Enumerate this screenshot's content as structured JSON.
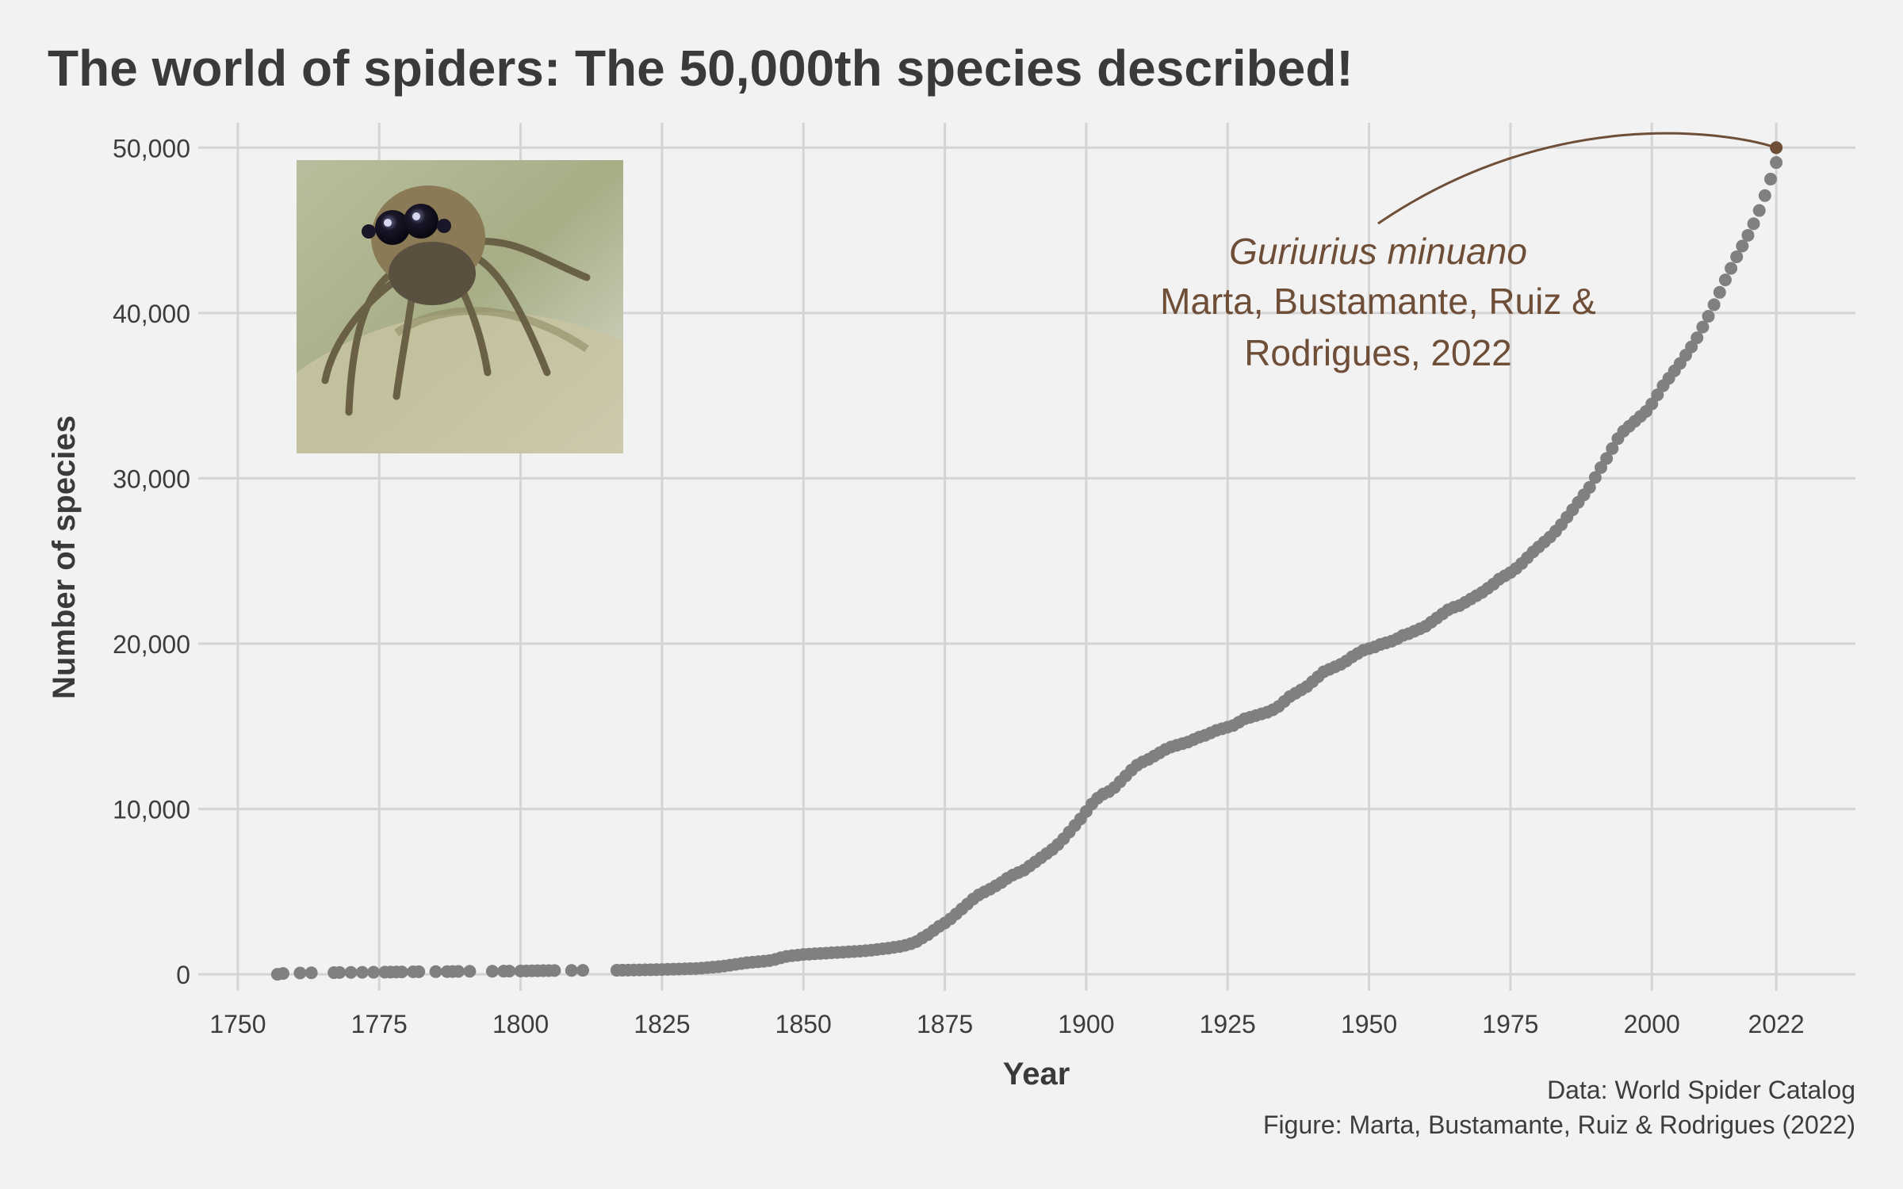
{
  "colors": {
    "background": "#f2f2f2",
    "grid": "#d4d4d4",
    "points": "#808080",
    "highlight": "#6f4e37",
    "text": "#3a3a3a"
  },
  "chart_data": {
    "type": "scatter",
    "title": "The world of spiders: The 50,000th species described!",
    "xlabel": "Year",
    "ylabel": "Number of species",
    "xlim": [
      1743,
      2036
    ],
    "ylim": [
      -1000,
      51500
    ],
    "x_ticks": [
      1750,
      1775,
      1800,
      1825,
      1850,
      1875,
      1900,
      1925,
      1950,
      1975,
      2000,
      2022
    ],
    "x_tick_labels": [
      "1750",
      "1775",
      "1800",
      "1825",
      "1850",
      "1875",
      "1900",
      "1925",
      "1950",
      "1975",
      "2000",
      "2022"
    ],
    "y_ticks": [
      0,
      10000,
      20000,
      30000,
      40000,
      50000
    ],
    "y_tick_labels": [
      "0",
      "10,000",
      "20,000",
      "30,000",
      "40,000",
      "50,000"
    ],
    "grid": true,
    "legend": "none",
    "series": [
      {
        "values_xy": [
          [
            1757,
            0
          ],
          [
            1758,
            50
          ],
          [
            1761,
            80
          ],
          [
            1763,
            90
          ],
          [
            1767,
            100
          ],
          [
            1768,
            110
          ],
          [
            1770,
            115
          ],
          [
            1772,
            120
          ],
          [
            1774,
            125
          ],
          [
            1776,
            130
          ],
          [
            1777,
            135
          ],
          [
            1778,
            140
          ],
          [
            1779,
            145
          ],
          [
            1781,
            150
          ],
          [
            1782,
            155
          ],
          [
            1785,
            160
          ],
          [
            1787,
            165
          ],
          [
            1788,
            170
          ],
          [
            1789,
            175
          ],
          [
            1791,
            180
          ],
          [
            1795,
            185
          ],
          [
            1797,
            190
          ],
          [
            1798,
            195
          ],
          [
            1800,
            200
          ],
          [
            1801,
            205
          ],
          [
            1802,
            210
          ],
          [
            1803,
            215
          ],
          [
            1804,
            220
          ],
          [
            1805,
            225
          ],
          [
            1806,
            230
          ],
          [
            1809,
            235
          ],
          [
            1811,
            240
          ],
          [
            1817,
            245
          ],
          [
            1818,
            250
          ],
          [
            1819,
            255
          ],
          [
            1820,
            260
          ],
          [
            1821,
            265
          ],
          [
            1822,
            270
          ],
          [
            1823,
            275
          ],
          [
            1824,
            280
          ],
          [
            1825,
            290
          ],
          [
            1826,
            300
          ],
          [
            1827,
            310
          ],
          [
            1828,
            320
          ],
          [
            1829,
            330
          ],
          [
            1830,
            340
          ],
          [
            1831,
            350
          ],
          [
            1832,
            370
          ],
          [
            1833,
            400
          ],
          [
            1834,
            430
          ],
          [
            1835,
            460
          ],
          [
            1836,
            500
          ],
          [
            1837,
            550
          ],
          [
            1838,
            600
          ],
          [
            1839,
            650
          ],
          [
            1840,
            700
          ],
          [
            1841,
            730
          ],
          [
            1842,
            760
          ],
          [
            1843,
            790
          ],
          [
            1844,
            830
          ],
          [
            1845,
            900
          ],
          [
            1846,
            1000
          ],
          [
            1847,
            1080
          ],
          [
            1848,
            1130
          ],
          [
            1849,
            1160
          ],
          [
            1850,
            1200
          ],
          [
            1851,
            1220
          ],
          [
            1852,
            1240
          ],
          [
            1853,
            1260
          ],
          [
            1854,
            1280
          ],
          [
            1855,
            1300
          ],
          [
            1856,
            1320
          ],
          [
            1857,
            1340
          ],
          [
            1858,
            1360
          ],
          [
            1859,
            1380
          ],
          [
            1860,
            1400
          ],
          [
            1861,
            1430
          ],
          [
            1862,
            1460
          ],
          [
            1863,
            1500
          ],
          [
            1864,
            1540
          ],
          [
            1865,
            1580
          ],
          [
            1866,
            1630
          ],
          [
            1867,
            1680
          ],
          [
            1868,
            1750
          ],
          [
            1869,
            1850
          ],
          [
            1870,
            1980
          ],
          [
            1871,
            2200
          ],
          [
            1872,
            2400
          ],
          [
            1873,
            2650
          ],
          [
            1874,
            2900
          ],
          [
            1875,
            3100
          ],
          [
            1876,
            3350
          ],
          [
            1877,
            3650
          ],
          [
            1878,
            3950
          ],
          [
            1879,
            4250
          ],
          [
            1880,
            4550
          ],
          [
            1881,
            4800
          ],
          [
            1882,
            4980
          ],
          [
            1883,
            5150
          ],
          [
            1884,
            5350
          ],
          [
            1885,
            5550
          ],
          [
            1886,
            5800
          ],
          [
            1887,
            6000
          ],
          [
            1888,
            6150
          ],
          [
            1889,
            6300
          ],
          [
            1890,
            6550
          ],
          [
            1891,
            6800
          ],
          [
            1892,
            7050
          ],
          [
            1893,
            7300
          ],
          [
            1894,
            7550
          ],
          [
            1895,
            7850
          ],
          [
            1896,
            8200
          ],
          [
            1897,
            8600
          ],
          [
            1898,
            9000
          ],
          [
            1899,
            9400
          ],
          [
            1900,
            9850
          ],
          [
            1901,
            10300
          ],
          [
            1902,
            10650
          ],
          [
            1903,
            10900
          ],
          [
            1904,
            11050
          ],
          [
            1905,
            11300
          ],
          [
            1906,
            11650
          ],
          [
            1907,
            12000
          ],
          [
            1908,
            12350
          ],
          [
            1909,
            12650
          ],
          [
            1910,
            12850
          ],
          [
            1911,
            13000
          ],
          [
            1912,
            13200
          ],
          [
            1913,
            13400
          ],
          [
            1914,
            13600
          ],
          [
            1915,
            13750
          ],
          [
            1916,
            13850
          ],
          [
            1917,
            13950
          ],
          [
            1918,
            14050
          ],
          [
            1919,
            14200
          ],
          [
            1920,
            14350
          ],
          [
            1921,
            14450
          ],
          [
            1922,
            14600
          ],
          [
            1923,
            14750
          ],
          [
            1924,
            14850
          ],
          [
            1925,
            14950
          ],
          [
            1926,
            15050
          ],
          [
            1927,
            15250
          ],
          [
            1928,
            15450
          ],
          [
            1929,
            15550
          ],
          [
            1930,
            15650
          ],
          [
            1931,
            15750
          ],
          [
            1932,
            15850
          ],
          [
            1933,
            16000
          ],
          [
            1934,
            16200
          ],
          [
            1935,
            16500
          ],
          [
            1936,
            16800
          ],
          [
            1937,
            17000
          ],
          [
            1938,
            17200
          ],
          [
            1939,
            17400
          ],
          [
            1940,
            17700
          ],
          [
            1941,
            18000
          ],
          [
            1942,
            18300
          ],
          [
            1943,
            18450
          ],
          [
            1944,
            18600
          ],
          [
            1945,
            18750
          ],
          [
            1946,
            18950
          ],
          [
            1947,
            19200
          ],
          [
            1948,
            19400
          ],
          [
            1949,
            19600
          ],
          [
            1950,
            19700
          ],
          [
            1951,
            19800
          ],
          [
            1952,
            19950
          ],
          [
            1953,
            20050
          ],
          [
            1954,
            20150
          ],
          [
            1955,
            20300
          ],
          [
            1956,
            20500
          ],
          [
            1957,
            20600
          ],
          [
            1958,
            20750
          ],
          [
            1959,
            20900
          ],
          [
            1960,
            21050
          ],
          [
            1961,
            21300
          ],
          [
            1962,
            21550
          ],
          [
            1963,
            21800
          ],
          [
            1964,
            22050
          ],
          [
            1965,
            22200
          ],
          [
            1966,
            22300
          ],
          [
            1967,
            22500
          ],
          [
            1968,
            22700
          ],
          [
            1969,
            22900
          ],
          [
            1970,
            23100
          ],
          [
            1971,
            23350
          ],
          [
            1972,
            23600
          ],
          [
            1973,
            23900
          ],
          [
            1974,
            24100
          ],
          [
            1975,
            24300
          ],
          [
            1976,
            24550
          ],
          [
            1977,
            24850
          ],
          [
            1978,
            25200
          ],
          [
            1979,
            25550
          ],
          [
            1980,
            25850
          ],
          [
            1981,
            26150
          ],
          [
            1982,
            26450
          ],
          [
            1983,
            26800
          ],
          [
            1984,
            27200
          ],
          [
            1985,
            27650
          ],
          [
            1986,
            28100
          ],
          [
            1987,
            28550
          ],
          [
            1988,
            29000
          ],
          [
            1989,
            29450
          ],
          [
            1990,
            30050
          ],
          [
            1991,
            30650
          ],
          [
            1992,
            31200
          ],
          [
            1993,
            31800
          ],
          [
            1994,
            32400
          ],
          [
            1995,
            32850
          ],
          [
            1996,
            33150
          ],
          [
            1997,
            33450
          ],
          [
            1998,
            33750
          ],
          [
            1999,
            34050
          ],
          [
            2000,
            34500
          ],
          [
            2001,
            35050
          ],
          [
            2002,
            35600
          ],
          [
            2003,
            36050
          ],
          [
            2004,
            36500
          ],
          [
            2005,
            36950
          ],
          [
            2006,
            37450
          ],
          [
            2007,
            37950
          ],
          [
            2008,
            38500
          ],
          [
            2009,
            39150
          ],
          [
            2010,
            39800
          ],
          [
            2011,
            40500
          ],
          [
            2012,
            41250
          ],
          [
            2013,
            42000
          ],
          [
            2014,
            42700
          ],
          [
            2015,
            43400
          ],
          [
            2016,
            44050
          ],
          [
            2017,
            44700
          ],
          [
            2018,
            45400
          ],
          [
            2019,
            46200
          ],
          [
            2020,
            47100
          ],
          [
            2021,
            48100
          ],
          [
            2022,
            49100
          ]
        ]
      }
    ],
    "highlight_point": {
      "x": 2022,
      "y": 50000
    },
    "annotation": {
      "species": "Guriurius minuano",
      "authors_line1": "Marta, Bustamante, Ruiz &",
      "authors_line2": "Rodrigues, 2022"
    },
    "caption_line1": "Data: World Spider Catalog",
    "caption_line2": "Figure:  Marta, Bustamante, Ruiz & Rodrigues (2022)"
  }
}
